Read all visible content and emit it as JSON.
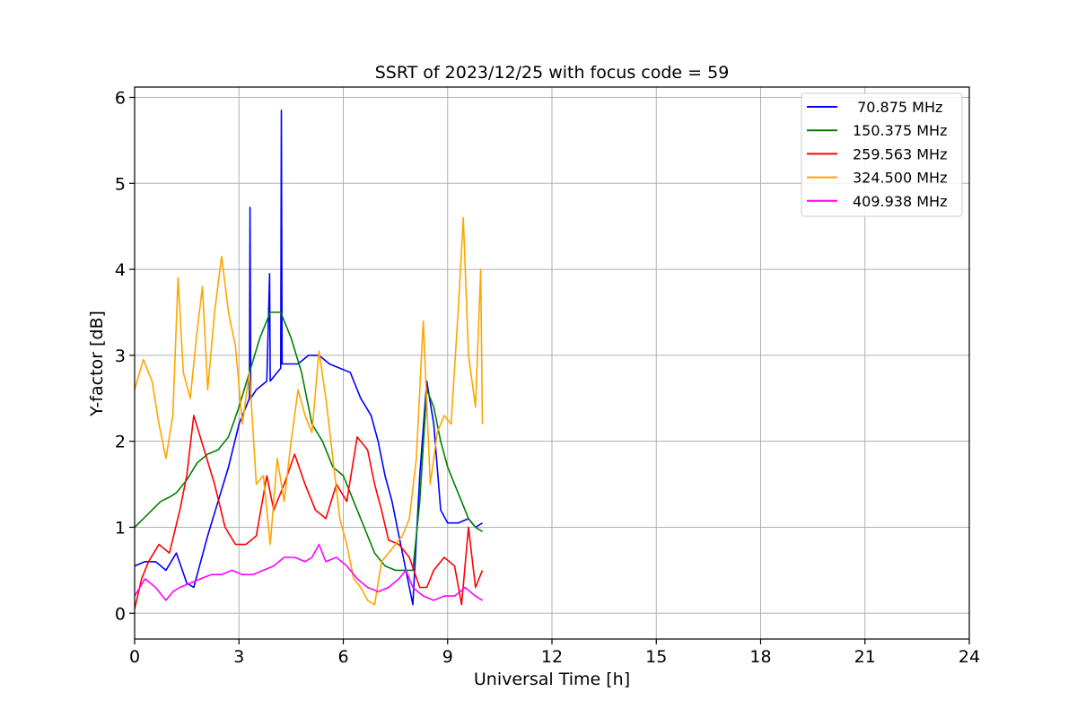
{
  "chart_data": {
    "type": "line",
    "title": "SSRT of 2023/12/25 with focus code = 59",
    "xlabel": "Universal Time [h]",
    "ylabel": "Y-factor [dB]",
    "xlim": [
      0,
      24
    ],
    "ylim": [
      -0.3,
      6.12
    ],
    "x_ticks": [
      0,
      3,
      6,
      9,
      12,
      15,
      18,
      21,
      24
    ],
    "y_ticks": [
      0,
      1,
      2,
      3,
      4,
      5,
      6
    ],
    "grid": true,
    "legend_position": "top-right",
    "series": [
      {
        "name": " 70.875 MHz",
        "color": "#0000ff",
        "x": [
          0,
          0.3,
          0.6,
          0.9,
          1.2,
          1.5,
          1.7,
          1.9,
          2.1,
          2.4,
          2.7,
          3.0,
          3.3,
          3.32,
          3.34,
          3.5,
          3.8,
          3.88,
          3.9,
          4.0,
          4.2,
          4.22,
          4.24,
          4.4,
          4.7,
          5.0,
          5.3,
          5.6,
          5.9,
          6.2,
          6.5,
          6.8,
          7.0,
          7.2,
          7.4,
          7.6,
          7.8,
          8.0,
          8.2,
          8.4,
          8.6,
          8.8,
          9.0,
          9.3,
          9.6,
          9.8,
          10.0
        ],
        "y": [
          0.55,
          0.6,
          0.6,
          0.5,
          0.7,
          0.35,
          0.3,
          0.6,
          0.9,
          1.3,
          1.7,
          2.2,
          2.5,
          4.72,
          2.5,
          2.6,
          2.7,
          3.95,
          2.7,
          2.75,
          2.85,
          5.85,
          2.9,
          2.9,
          2.9,
          3.0,
          3.0,
          2.9,
          2.85,
          2.8,
          2.5,
          2.3,
          2.0,
          1.6,
          1.3,
          0.9,
          0.5,
          0.1,
          1.6,
          2.7,
          2.2,
          1.2,
          1.05,
          1.05,
          1.1,
          1.0,
          1.05
        ]
      },
      {
        "name": "150.375 MHz",
        "color": "#008000",
        "x": [
          0,
          0.25,
          0.5,
          0.75,
          1.0,
          1.2,
          1.5,
          1.8,
          2.1,
          2.4,
          2.7,
          3.0,
          3.3,
          3.6,
          3.9,
          4.2,
          4.5,
          4.8,
          5.1,
          5.4,
          5.7,
          6.0,
          6.3,
          6.6,
          6.9,
          7.2,
          7.5,
          7.8,
          8.0,
          8.2,
          8.4,
          8.6,
          8.8,
          9.0,
          9.2,
          9.4,
          9.6,
          9.8,
          10.0
        ],
        "y": [
          1.0,
          1.1,
          1.2,
          1.3,
          1.35,
          1.4,
          1.55,
          1.75,
          1.85,
          1.9,
          2.05,
          2.4,
          2.8,
          3.2,
          3.5,
          3.5,
          3.2,
          2.8,
          2.2,
          2.0,
          1.7,
          1.6,
          1.3,
          1.0,
          0.7,
          0.55,
          0.5,
          0.5,
          0.5,
          1.3,
          2.6,
          2.4,
          2.0,
          1.7,
          1.5,
          1.3,
          1.1,
          1.0,
          0.95
        ]
      },
      {
        "name": "259.563 MHz",
        "color": "#ff0000",
        "x": [
          0,
          0.2,
          0.4,
          0.7,
          1.0,
          1.3,
          1.5,
          1.7,
          2.0,
          2.3,
          2.6,
          2.9,
          3.2,
          3.5,
          3.8,
          4.0,
          4.3,
          4.6,
          4.9,
          5.2,
          5.5,
          5.8,
          6.1,
          6.4,
          6.7,
          6.9,
          7.1,
          7.3,
          7.6,
          7.9,
          8.2,
          8.4,
          8.6,
          8.9,
          9.2,
          9.4,
          9.6,
          9.8,
          10.0
        ],
        "y": [
          0.05,
          0.4,
          0.6,
          0.8,
          0.7,
          1.2,
          1.6,
          2.3,
          1.9,
          1.5,
          1.0,
          0.8,
          0.8,
          0.9,
          1.6,
          1.2,
          1.5,
          1.85,
          1.5,
          1.2,
          1.1,
          1.5,
          1.3,
          2.05,
          1.9,
          1.5,
          1.2,
          0.85,
          0.8,
          0.65,
          0.3,
          0.3,
          0.5,
          0.65,
          0.55,
          0.1,
          1.0,
          0.3,
          0.5
        ]
      },
      {
        "name": "324.500 MHz",
        "color": "#ffa500",
        "x": [
          0,
          0.25,
          0.5,
          0.7,
          0.9,
          1.1,
          1.25,
          1.4,
          1.6,
          1.8,
          1.95,
          2.1,
          2.3,
          2.5,
          2.7,
          2.9,
          3.1,
          3.3,
          3.5,
          3.7,
          3.9,
          4.1,
          4.3,
          4.5,
          4.7,
          4.9,
          5.1,
          5.3,
          5.5,
          5.7,
          5.9,
          6.1,
          6.3,
          6.5,
          6.7,
          6.9,
          7.1,
          7.3,
          7.5,
          7.7,
          7.9,
          8.1,
          8.3,
          8.5,
          8.7,
          8.9,
          9.1,
          9.3,
          9.45,
          9.6,
          9.8,
          9.95,
          10.0
        ],
        "y": [
          2.6,
          2.95,
          2.7,
          2.2,
          1.8,
          2.3,
          3.9,
          2.8,
          2.5,
          3.3,
          3.8,
          2.6,
          3.5,
          4.15,
          3.5,
          3.1,
          2.2,
          2.8,
          1.5,
          1.6,
          0.8,
          1.8,
          1.3,
          2.0,
          2.6,
          2.3,
          2.1,
          3.05,
          2.5,
          1.8,
          1.1,
          0.8,
          0.4,
          0.3,
          0.15,
          0.1,
          0.6,
          0.7,
          0.8,
          0.9,
          1.1,
          1.8,
          3.4,
          1.5,
          2.1,
          2.3,
          2.2,
          3.5,
          4.6,
          3.0,
          2.4,
          4.0,
          2.2
        ]
      },
      {
        "name": "409.938 MHz",
        "color": "#ff00ff",
        "x": [
          0,
          0.3,
          0.6,
          0.9,
          1.1,
          1.3,
          1.6,
          1.9,
          2.2,
          2.5,
          2.8,
          3.1,
          3.4,
          3.7,
          4.0,
          4.3,
          4.6,
          4.9,
          5.1,
          5.3,
          5.5,
          5.8,
          6.1,
          6.4,
          6.7,
          7.0,
          7.3,
          7.6,
          7.8,
          8.0,
          8.3,
          8.6,
          8.9,
          9.2,
          9.5,
          9.8,
          10.0
        ],
        "y": [
          0.2,
          0.4,
          0.3,
          0.15,
          0.25,
          0.3,
          0.35,
          0.4,
          0.45,
          0.45,
          0.5,
          0.45,
          0.45,
          0.5,
          0.55,
          0.65,
          0.65,
          0.6,
          0.65,
          0.8,
          0.6,
          0.65,
          0.55,
          0.4,
          0.3,
          0.25,
          0.3,
          0.4,
          0.5,
          0.3,
          0.2,
          0.15,
          0.2,
          0.2,
          0.3,
          0.2,
          0.15
        ]
      }
    ]
  }
}
